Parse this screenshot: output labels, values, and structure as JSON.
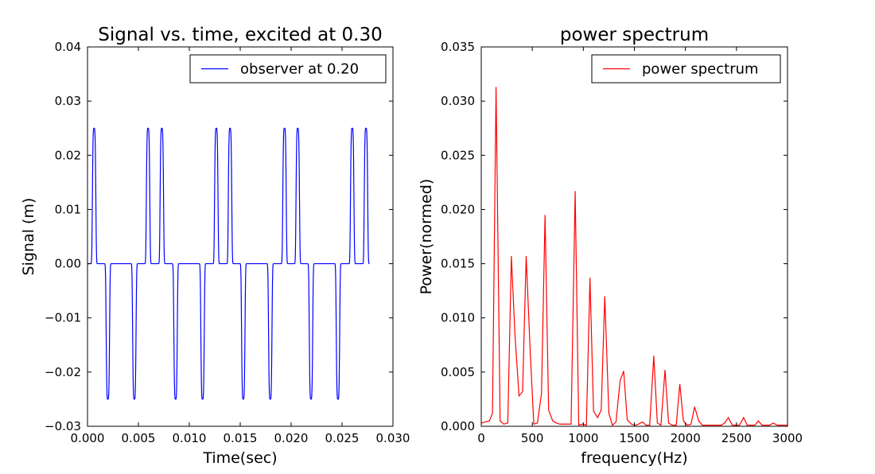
{
  "chart_data": [
    {
      "type": "line",
      "title": "Signal vs. time, excited at 0.30",
      "xlabel": "Time(sec)",
      "ylabel": "Signal (m)",
      "xlim": [
        0.0,
        0.03
      ],
      "ylim": [
        -0.03,
        0.04
      ],
      "xticks": [
        0.0,
        0.005,
        0.01,
        0.015,
        0.02,
        0.025,
        0.03
      ],
      "xtick_labels": [
        "0.000",
        "0.005",
        "0.010",
        "0.015",
        "0.020",
        "0.025",
        "0.030"
      ],
      "yticks": [
        -0.03,
        -0.02,
        -0.01,
        0.0,
        0.01,
        0.02,
        0.03,
        0.04
      ],
      "ytick_labels": [
        "−0.03",
        "−0.02",
        "−0.01",
        "0.00",
        "0.01",
        "0.02",
        "0.03",
        "0.04"
      ],
      "grid": false,
      "legend": "top-right",
      "color": "#0000ff",
      "series": [
        {
          "name": "observer at 0.20",
          "pulse_width": 0.00022,
          "x_end": 0.0277,
          "positive_peaks": [
            0.00065,
            0.00595,
            0.0073,
            0.01265,
            0.014,
            0.01935,
            0.02065,
            0.026,
            0.02735
          ],
          "negative_peaks": [
            0.002,
            0.0046,
            0.00865,
            0.0113,
            0.0153,
            0.01795,
            0.02195,
            0.0246
          ],
          "peak_value": 0.025
        }
      ]
    },
    {
      "type": "line",
      "title": "power spectrum",
      "xlabel": "frequency(Hz)",
      "ylabel": "Power(normed)",
      "xlim": [
        0,
        3000
      ],
      "ylim": [
        0.0,
        0.035
      ],
      "xticks": [
        0,
        500,
        1000,
        1500,
        2000,
        2500,
        3000
      ],
      "xtick_labels": [
        "0",
        "500",
        "1000",
        "1500",
        "2000",
        "2500",
        "3000"
      ],
      "yticks": [
        0.0,
        0.005,
        0.01,
        0.015,
        0.02,
        0.025,
        0.03,
        0.035
      ],
      "ytick_labels": [
        "0.000",
        "0.005",
        "0.010",
        "0.015",
        "0.020",
        "0.025",
        "0.030",
        "0.035"
      ],
      "grid": false,
      "legend": "top-right",
      "color": "#ff0000",
      "series": [
        {
          "name": "power spectrum",
          "x": [
            0,
            40,
            80,
            110,
            145,
            185,
            220,
            260,
            295,
            330,
            370,
            405,
            440,
            480,
            515,
            550,
            590,
            625,
            660,
            700,
            735,
            770,
            810,
            845,
            880,
            920,
            955,
            990,
            1030,
            1065,
            1100,
            1140,
            1175,
            1210,
            1250,
            1285,
            1320,
            1360,
            1395,
            1430,
            1470,
            1505,
            1540,
            1580,
            1615,
            1650,
            1690,
            1725,
            1760,
            1800,
            1835,
            1870,
            1910,
            1945,
            1980,
            2020,
            2055,
            2090,
            2130,
            2165,
            2200,
            2240,
            2275,
            2310,
            2350,
            2385,
            2420,
            2460,
            2495,
            2530,
            2570,
            2605,
            2640,
            2680,
            2715,
            2750,
            2790,
            2825,
            2860,
            2900,
            2935,
            2970,
            3000
          ],
          "y": [
            0.0003,
            0.0004,
            0.0005,
            0.0012,
            0.0313,
            0.0005,
            0.0002,
            0.0003,
            0.0157,
            0.0085,
            0.0028,
            0.0032,
            0.0157,
            0.0068,
            0.0002,
            0.0003,
            0.003,
            0.0195,
            0.0015,
            0.0005,
            0.0003,
            0.0002,
            0.0002,
            0.0002,
            0.0002,
            0.0217,
            0.0001,
            0.0002,
            0.0001,
            0.0137,
            0.0014,
            0.0008,
            0.0015,
            0.012,
            0.0012,
            0.0001,
            0.0004,
            0.0042,
            0.0051,
            0.0006,
            0.0002,
            0.0001,
            0.0002,
            0.0004,
            0.0001,
            0.0001,
            0.0065,
            0.0003,
            0.0001,
            0.0052,
            0.0003,
            0.0001,
            0.0001,
            0.0039,
            0.0005,
            0.0001,
            0.0002,
            0.0018,
            0.0005,
            0.0001,
            0.0001,
            0.0001,
            0.0001,
            0.0001,
            0.0001,
            0.0003,
            0.0008,
            0.0001,
            0.0001,
            0.0001,
            0.0008,
            0.0001,
            0.0001,
            0.0001,
            0.0005,
            0.0001,
            0.0001,
            0.0001,
            0.0003,
            0.0001,
            0.0001,
            0.0001,
            0.0001
          ]
        }
      ]
    }
  ]
}
